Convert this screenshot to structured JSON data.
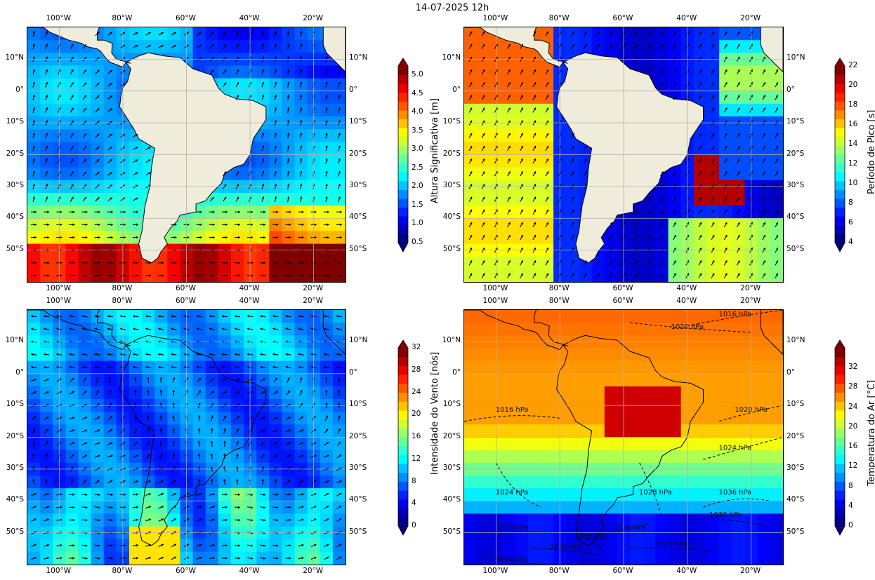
{
  "suptitle": "14-07-2025 12h",
  "colors": {
    "land": "#efecdc",
    "grid": "#b0b0b0"
  },
  "chart_data": [
    {
      "type": "heatmap",
      "name": "significant-wave-height",
      "lon_ticks": [
        "100°W",
        "80°W",
        "60°W",
        "40°W",
        "20°W"
      ],
      "lat_ticks": [
        "10°N",
        "0°",
        "10°S",
        "20°S",
        "30°S",
        "40°S",
        "50°S"
      ],
      "extent": {
        "lon": [
          -110,
          -10
        ],
        "lat": [
          -60,
          20
        ]
      },
      "colorbar": {
        "label": "Altura Significativa [m]",
        "ticks": [
          "0.5",
          "1.0",
          "1.5",
          "2.0",
          "2.5",
          "3.0",
          "3.5",
          "4.0",
          "4.5",
          "5.0"
        ],
        "range": [
          0.5,
          5.25
        ],
        "colormap": "jet",
        "extend": "both"
      },
      "vectors": "wave direction arrows",
      "land_mask": true
    },
    {
      "type": "heatmap",
      "name": "peak-period",
      "lon_ticks": [
        "100°W",
        "80°W",
        "60°W",
        "40°W",
        "20°W"
      ],
      "lat_ticks": [
        "10°N",
        "0°",
        "10°S",
        "20°S",
        "30°S",
        "40°S",
        "50°S"
      ],
      "extent": {
        "lon": [
          -110,
          -10
        ],
        "lat": [
          -60,
          20
        ]
      },
      "colorbar": {
        "label": "Período de Pico [s]",
        "ticks": [
          "4",
          "6",
          "8",
          "10",
          "12",
          "14",
          "16",
          "18",
          "20",
          "22"
        ],
        "range": [
          4,
          22
        ],
        "colormap": "jet",
        "extend": "both"
      },
      "vectors": "wave direction arrows",
      "land_mask": true
    },
    {
      "type": "heatmap",
      "name": "wind-speed",
      "lon_ticks": [
        "100°W",
        "80°W",
        "60°W",
        "40°W",
        "20°W"
      ],
      "lat_ticks": [
        "10°N",
        "0°",
        "10°S",
        "20°S",
        "30°S",
        "40°S",
        "50°S"
      ],
      "extent": {
        "lon": [
          -110,
          -10
        ],
        "lat": [
          -60,
          20
        ]
      },
      "colorbar": {
        "label": "Intensidade do Vento [nós]",
        "ticks": [
          "0",
          "4",
          "8",
          "12",
          "16",
          "20",
          "24",
          "28",
          "32"
        ],
        "range": [
          0,
          32
        ],
        "colormap": "jet",
        "extend": "both"
      },
      "vectors": "wind arrows",
      "land_mask": false
    },
    {
      "type": "heatmap",
      "name": "air-temperature",
      "lon_ticks": [
        "100°W",
        "80°W",
        "60°W",
        "40°W",
        "20°W"
      ],
      "lat_ticks": [
        "10°N",
        "0°",
        "10°S",
        "20°S",
        "30°S",
        "40°S",
        "50°S"
      ],
      "extent": {
        "lon": [
          -110,
          -10
        ],
        "lat": [
          -60,
          20
        ]
      },
      "colorbar": {
        "label": "Temperatura do Ar [°C]",
        "ticks": [
          "0",
          "4",
          "8",
          "12",
          "16",
          "20",
          "24",
          "28",
          "32"
        ],
        "range": [
          0,
          36
        ],
        "colormap": "jet",
        "extend": "both"
      },
      "isobars": [
        "1016 hPa",
        "1020 hPa",
        "1016 hPa",
        "1020 hPa",
        "1024 hPa",
        "1024 hPa",
        "1028 hPa",
        "1036 hPa",
        "1032 hPa",
        "1016 hPa",
        "1020 hPa",
        "1016 hPa",
        "1012 hPa",
        "1020 hPa",
        "1016 hPa"
      ],
      "land_mask": false
    }
  ]
}
